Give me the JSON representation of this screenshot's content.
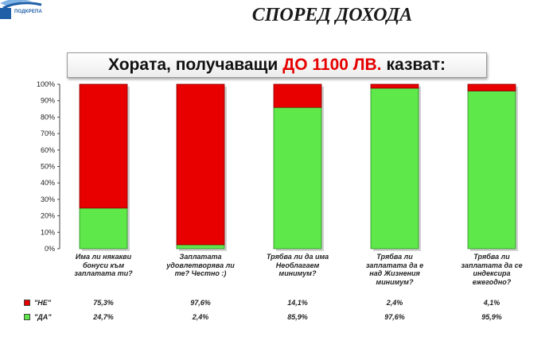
{
  "logo": {
    "text": "ПОДКРЕПА",
    "colors": [
      "#1f5fa8",
      "#7fb3e6"
    ]
  },
  "slide_title": "СПОРЕД ДОХОДА",
  "chart_data": {
    "type": "bar",
    "stacked": true,
    "title_parts": [
      "Хората, получаващи",
      "ДО 1100 ЛВ.",
      "казват:"
    ],
    "categories": [
      "Има ли някакви\nбонуси към\nзаплатата ти?",
      "Заплатата\nудовлетворява ли\nте? Честно :)",
      "Трябва ли да има\nНеоблагаем\nминимум?",
      "Трябва ли\nзаплатата да е\nнад Жизнения\nминимум?",
      "Трябва ли\nзаплатата да се\nиндексира\nежегодно?"
    ],
    "series": [
      {
        "name": "\"НЕ\"",
        "color": "#e80000",
        "values": [
          75.3,
          97.6,
          14.1,
          2.4,
          4.1
        ],
        "labels": [
          "75,3%",
          "97,6%",
          "14,1%",
          "2,4%",
          "4,1%"
        ]
      },
      {
        "name": "\"ДА\"",
        "color": "#5ee84a",
        "values": [
          24.7,
          2.4,
          85.9,
          97.6,
          95.9
        ],
        "labels": [
          "24,7%",
          "2,4%",
          "85,9%",
          "97,6%",
          "95,9%"
        ]
      }
    ],
    "y_ticks": [
      "0%",
      "10%",
      "20%",
      "30%",
      "40%",
      "50%",
      "60%",
      "70%",
      "80%",
      "90%",
      "100%"
    ],
    "ylim": [
      0,
      100
    ],
    "grid": false
  }
}
